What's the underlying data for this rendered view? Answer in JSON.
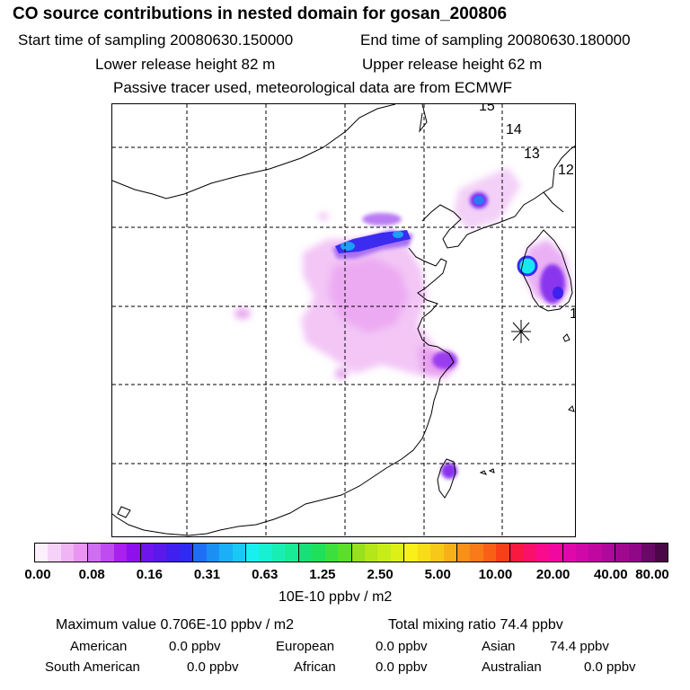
{
  "header": {
    "title": "CO  source contributions in nested domain for gosan_200806",
    "start_time": "Start time of sampling 20080630.150000",
    "end_time": "End time of sampling 20080630.180000",
    "lower_height": "Lower release height   82 m",
    "upper_height": "Upper release height   62 m",
    "info": "Passive tracer used, meteorological data are from ECMWF"
  },
  "map": {
    "trajectory_labels": [
      "15",
      "14",
      "13",
      "12",
      "1"
    ],
    "receptor_marker": "asterisk-receptor"
  },
  "colorbar": {
    "ticks": [
      "0.00",
      "0.08",
      "0.16",
      "0.31",
      "0.63",
      "1.25",
      "2.50",
      "5.00",
      "10.00",
      "20.00",
      "40.00",
      "80.00"
    ],
    "unit": "10E-10 ppbv / m2",
    "colors": [
      "#fdf0fd",
      "#f6d2f8",
      "#f0b3f4",
      "#e995f1",
      "#cf6ef1",
      "#be4cf0",
      "#a920ef",
      "#8f10ee",
      "#6e14ec",
      "#5a18ea",
      "#3f20ee",
      "#2f2bf2",
      "#1f6ff4",
      "#1c8ff5",
      "#1aaff6",
      "#19c8f7",
      "#18f0f0",
      "#18f0d2",
      "#18eeb4",
      "#18ec96",
      "#18e078",
      "#1ee05a",
      "#3ce03c",
      "#5ae028",
      "#96e01e",
      "#b4e61a",
      "#c8ec18",
      "#dcf018",
      "#f8f018",
      "#f8dc18",
      "#f8c818",
      "#f8b018",
      "#f89018",
      "#f87a18",
      "#f86018",
      "#f84018",
      "#f81840",
      "#f8106a",
      "#f80c8c",
      "#f008a0",
      "#e008a8",
      "#d008a8",
      "#c008a0",
      "#b00898",
      "#a00890",
      "#900888",
      "#6a0866",
      "#4a0848"
    ]
  },
  "stats": {
    "max_value": "Maximum value  0.706E-10 ppbv / m2",
    "total_mixing": "Total mixing ratio       74.4 ppbv",
    "regions": [
      {
        "name": "American",
        "value": "0.0 ppbv"
      },
      {
        "name": "European",
        "value": "0.0 ppbv"
      },
      {
        "name": "Asian",
        "value": "74.4 ppbv"
      },
      {
        "name": "South American",
        "value": "0.0 ppbv"
      },
      {
        "name": "African",
        "value": "0.0 ppbv"
      },
      {
        "name": "Australian",
        "value": "0.0 ppbv"
      }
    ]
  }
}
